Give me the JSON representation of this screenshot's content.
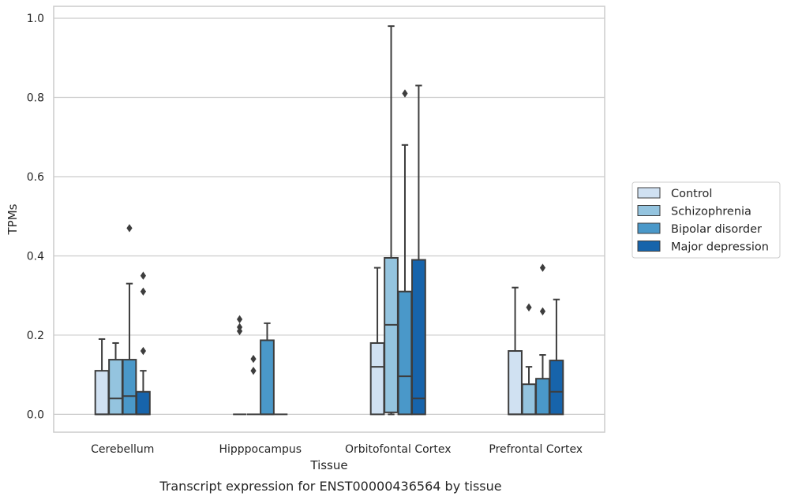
{
  "chart_data": {
    "type": "box",
    "title": "",
    "caption": "Transcript expression for ENST00000436564 by tissue",
    "xlabel": "Tissue",
    "ylabel": "TPMs",
    "ylim": [
      -0.045,
      1.03
    ],
    "yticks": [
      "0.0",
      "0.2",
      "0.4",
      "0.6",
      "0.8",
      "1.0"
    ],
    "grid": true,
    "legend_position": "right",
    "categories": [
      "Cerebellum",
      "Hipppocampus",
      "Orbitofontal Cortex",
      "Prefrontal Cortex"
    ],
    "series": [
      {
        "name": "Control",
        "color": "#d0e1f2",
        "boxes": [
          {
            "q1": 0.0,
            "median": 0.0,
            "q3": 0.11,
            "whislo": 0.0,
            "whishi": 0.19,
            "fliers": []
          },
          {
            "q1": 0.0,
            "median": 0.0,
            "q3": 0.0,
            "whislo": 0.0,
            "whishi": 0.0,
            "fliers": [
              0.24,
              0.22,
              0.21
            ]
          },
          {
            "q1": 0.0,
            "median": 0.12,
            "q3": 0.18,
            "whislo": 0.0,
            "whishi": 0.37,
            "fliers": []
          },
          {
            "q1": 0.0,
            "median": 0.0,
            "q3": 0.16,
            "whislo": 0.0,
            "whishi": 0.32,
            "fliers": []
          }
        ]
      },
      {
        "name": "Schizophrenia",
        "color": "#94c4df",
        "boxes": [
          {
            "q1": 0.0,
            "median": 0.04,
            "q3": 0.138,
            "whislo": 0.0,
            "whishi": 0.18,
            "fliers": []
          },
          {
            "q1": 0.0,
            "median": 0.0,
            "q3": 0.0,
            "whislo": 0.0,
            "whishi": 0.0,
            "fliers": [
              0.14,
              0.11
            ]
          },
          {
            "q1": 0.005,
            "median": 0.226,
            "q3": 0.395,
            "whislo": 0.0,
            "whishi": 0.98,
            "fliers": []
          },
          {
            "q1": 0.0,
            "median": 0.0,
            "q3": 0.076,
            "whislo": 0.0,
            "whishi": 0.12,
            "fliers": [
              0.27
            ]
          }
        ]
      },
      {
        "name": "Bipolar disorder",
        "color": "#4a98c9",
        "boxes": [
          {
            "q1": 0.0,
            "median": 0.046,
            "q3": 0.138,
            "whislo": 0.0,
            "whishi": 0.33,
            "fliers": [
              0.47
            ]
          },
          {
            "q1": 0.0,
            "median": 0.0,
            "q3": 0.187,
            "whislo": 0.0,
            "whishi": 0.23,
            "fliers": []
          },
          {
            "q1": 0.0,
            "median": 0.096,
            "q3": 0.31,
            "whislo": 0.0,
            "whishi": 0.68,
            "fliers": [
              0.81
            ]
          },
          {
            "q1": 0.0,
            "median": 0.0,
            "q3": 0.09,
            "whislo": 0.0,
            "whishi": 0.15,
            "fliers": [
              0.26,
              0.37
            ]
          }
        ]
      },
      {
        "name": "Major depression",
        "color": "#1764ab",
        "boxes": [
          {
            "q1": 0.0,
            "median": 0.0,
            "q3": 0.057,
            "whislo": 0.0,
            "whishi": 0.11,
            "fliers": [
              0.16,
              0.31,
              0.35
            ]
          },
          {
            "q1": 0.0,
            "median": 0.0,
            "q3": 0.0,
            "whislo": 0.0,
            "whishi": 0.0,
            "fliers": []
          },
          {
            "q1": 0.0,
            "median": 0.04,
            "q3": 0.39,
            "whislo": 0.0,
            "whishi": 0.83,
            "fliers": []
          },
          {
            "q1": 0.0,
            "median": 0.057,
            "q3": 0.136,
            "whislo": 0.0,
            "whishi": 0.29,
            "fliers": []
          }
        ]
      }
    ]
  }
}
